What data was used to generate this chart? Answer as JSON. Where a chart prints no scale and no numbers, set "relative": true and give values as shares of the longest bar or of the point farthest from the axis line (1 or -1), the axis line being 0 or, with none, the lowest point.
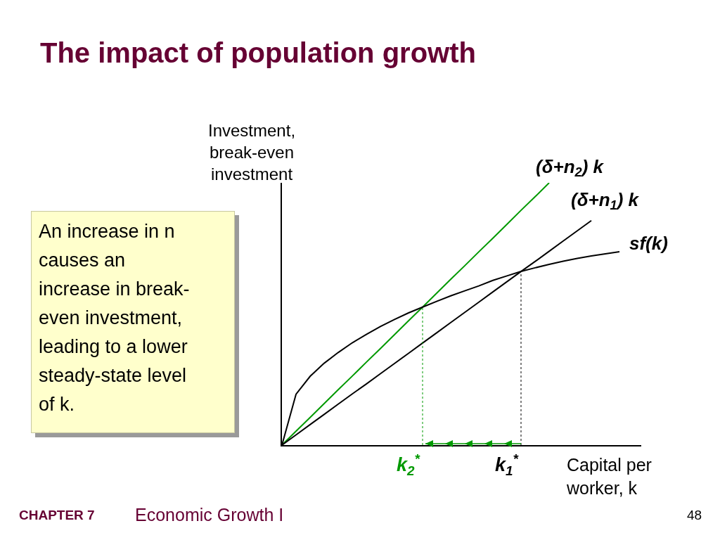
{
  "chart_data": {
    "type": "line",
    "relative": true,
    "title": "The impact of population growth",
    "ylabel": "Investment, break-even investment",
    "xlabel": "Capital per worker, k",
    "categories": [
      null,
      null,
      null,
      null,
      null,
      null,
      null,
      null,
      null,
      null,
      null,
      null,
      null,
      null,
      null,
      null,
      null,
      null,
      null,
      null,
      null,
      null,
      null,
      null,
      null
    ],
    "series": [
      {
        "name": "(δ+n$_{2}$) k",
        "color": "#009900",
        "values": [
          0,
          0.053,
          0.105,
          0.158,
          0.211,
          0.263,
          0.316,
          0.368,
          0.421,
          0.474,
          0.526,
          0.579,
          0.632,
          0.684,
          0.737,
          0.789,
          0.842,
          0.895,
          0.947,
          1,
          null,
          null,
          null,
          null,
          null
        ]
      },
      {
        "name": "(δ+n$_{1}$) k",
        "color": "#000000",
        "values": [
          0,
          0.039,
          0.078,
          0.117,
          0.156,
          0.195,
          0.233,
          0.272,
          0.311,
          0.35,
          0.389,
          0.428,
          0.467,
          0.506,
          0.545,
          0.584,
          0.623,
          0.662,
          0.7,
          0.739,
          0.778,
          0.817,
          0.856,
          null,
          null
        ]
      },
      {
        "name": "sf(k)",
        "color": "#000000",
        "values": [
          0,
          0.194,
          0.262,
          0.312,
          0.353,
          0.39,
          0.422,
          0.452,
          0.479,
          0.504,
          0.526,
          0.548,
          0.569,
          0.588,
          0.607,
          0.628,
          0.645,
          0.662,
          0.676,
          0.689,
          0.701,
          0.712,
          0.721,
          0.729,
          0.737
        ]
      }
    ],
    "annotations": [
      "An increase in n causes an increase in break-even investment, leading to a lower steady-state level of k.",
      "k$_{2}$$^{*}$",
      "k$_{1}$$^{*}$",
      "CHAPTER 7",
      "Economic Growth I",
      "48"
    ],
    "legend": false,
    "marker": "none",
    "line_style": "solid"
  }
}
